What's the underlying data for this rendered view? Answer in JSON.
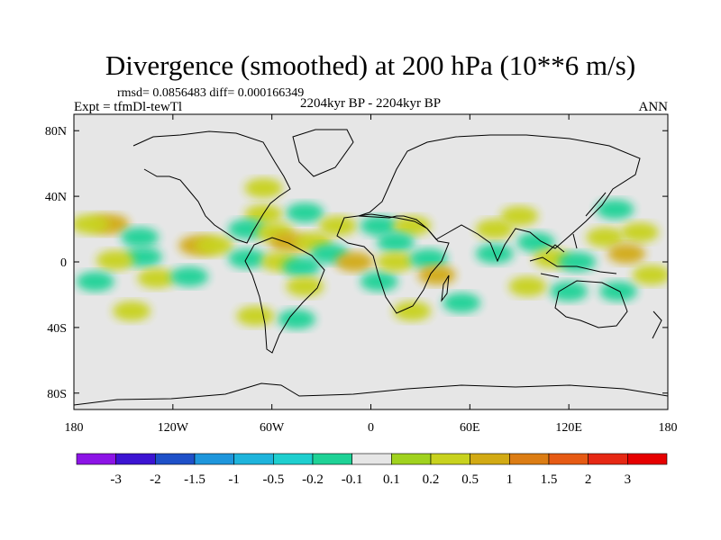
{
  "chart_data": {
    "type": "heatmap",
    "title": "Divergence (smoothed) at 200 hPa (10**6 m/s)",
    "stats_text": "rmsd= 0.0856483 diff= 0.000166349",
    "left_label": "Expt = tfmDl-tewTl",
    "center_label": "2204kyr BP - 2204kyr BP",
    "right_label": "ANN",
    "projection": "cylindrical-equidistant",
    "xlim": [
      -180,
      180
    ],
    "ylim": [
      -90,
      90
    ],
    "x_ticks": [
      {
        "value": -180,
        "label": "180"
      },
      {
        "value": -120,
        "label": "120W"
      },
      {
        "value": -60,
        "label": "60W"
      },
      {
        "value": 0,
        "label": "0"
      },
      {
        "value": 60,
        "label": "60E"
      },
      {
        "value": 120,
        "label": "120E"
      },
      {
        "value": 180,
        "label": "180"
      }
    ],
    "y_ticks": [
      {
        "value": 80,
        "label": "80N"
      },
      {
        "value": 40,
        "label": "40N"
      },
      {
        "value": 0,
        "label": "0"
      },
      {
        "value": -40,
        "label": "40S"
      },
      {
        "value": -80,
        "label": "80S"
      }
    ],
    "colorbar": {
      "levels": [
        "-3",
        "-2",
        "-1.5",
        "-1",
        "-0.5",
        "-0.2",
        "-0.1",
        "0.1",
        "0.2",
        "0.5",
        "1",
        "1.5",
        "2",
        "3"
      ],
      "colors": [
        "#8c14e6",
        "#3c14d2",
        "#1e50c8",
        "#1e96dc",
        "#1eb4dc",
        "#1ecfcf",
        "#1ed296",
        "#e6e6e6",
        "#a0d21e",
        "#c8d21e",
        "#d2aa14",
        "#dc7d14",
        "#e65a14",
        "#e62814",
        "#e60000"
      ]
    },
    "field_cells": [
      {
        "lon": -158,
        "lat": 23,
        "value": 0.6
      },
      {
        "lon": -170,
        "lat": 23,
        "value": 0.2
      },
      {
        "lon": -140,
        "lat": 15,
        "value": -0.2
      },
      {
        "lon": -105,
        "lat": 10,
        "value": 0.6
      },
      {
        "lon": -95,
        "lat": 10,
        "value": 0.2
      },
      {
        "lon": -138,
        "lat": 3,
        "value": -0.2
      },
      {
        "lon": -155,
        "lat": 1,
        "value": 0.2
      },
      {
        "lon": -167,
        "lat": -12,
        "value": -0.2
      },
      {
        "lon": -130,
        "lat": -10,
        "value": 0.2
      },
      {
        "lon": -110,
        "lat": -9,
        "value": -0.2
      },
      {
        "lon": -145,
        "lat": -30,
        "value": 0.2
      },
      {
        "lon": -40,
        "lat": 30,
        "value": -0.2
      },
      {
        "lon": -65,
        "lat": 45,
        "value": 0.2
      },
      {
        "lon": -65,
        "lat": 29,
        "value": 0.2
      },
      {
        "lon": -75,
        "lat": 20,
        "value": -0.2
      },
      {
        "lon": -58,
        "lat": 18,
        "value": 0.2
      },
      {
        "lon": -50,
        "lat": 12,
        "value": 0.6
      },
      {
        "lon": -35,
        "lat": 12,
        "value": 0.2
      },
      {
        "lon": -75,
        "lat": 2,
        "value": -0.2
      },
      {
        "lon": -55,
        "lat": 0,
        "value": 0.2
      },
      {
        "lon": -42,
        "lat": -3,
        "value": -0.2
      },
      {
        "lon": -25,
        "lat": 5,
        "value": -0.2
      },
      {
        "lon": -10,
        "lat": 0,
        "value": 0.6
      },
      {
        "lon": -40,
        "lat": -15,
        "value": 0.2
      },
      {
        "lon": -45,
        "lat": -35,
        "value": -0.2
      },
      {
        "lon": -70,
        "lat": -33,
        "value": 0.2
      },
      {
        "lon": -20,
        "lat": 22,
        "value": 0.2
      },
      {
        "lon": 5,
        "lat": 22,
        "value": -0.2
      },
      {
        "lon": 25,
        "lat": 22,
        "value": 0.2
      },
      {
        "lon": 15,
        "lat": 12,
        "value": -0.2
      },
      {
        "lon": 5,
        "lat": -12,
        "value": -0.2
      },
      {
        "lon": 15,
        "lat": 0,
        "value": 0.2
      },
      {
        "lon": 35,
        "lat": 2,
        "value": -0.2
      },
      {
        "lon": 40,
        "lat": -8,
        "value": 0.6
      },
      {
        "lon": 25,
        "lat": -30,
        "value": 0.2
      },
      {
        "lon": 55,
        "lat": -25,
        "value": -0.2
      },
      {
        "lon": 75,
        "lat": 20,
        "value": 0.2
      },
      {
        "lon": 75,
        "lat": 5,
        "value": -0.2
      },
      {
        "lon": 90,
        "lat": 28,
        "value": 0.2
      },
      {
        "lon": 100,
        "lat": 12,
        "value": -0.2
      },
      {
        "lon": 110,
        "lat": 2,
        "value": 0.2
      },
      {
        "lon": 125,
        "lat": 0,
        "value": -0.2
      },
      {
        "lon": 142,
        "lat": 15,
        "value": 0.2
      },
      {
        "lon": 148,
        "lat": 32,
        "value": -0.2
      },
      {
        "lon": 163,
        "lat": 18,
        "value": 0.2
      },
      {
        "lon": 155,
        "lat": 5,
        "value": 0.6
      },
      {
        "lon": 120,
        "lat": -18,
        "value": -0.2
      },
      {
        "lon": 150,
        "lat": -18,
        "value": -0.2
      },
      {
        "lon": 95,
        "lat": -15,
        "value": 0.2
      },
      {
        "lon": 170,
        "lat": -8,
        "value": 0.2
      }
    ]
  }
}
